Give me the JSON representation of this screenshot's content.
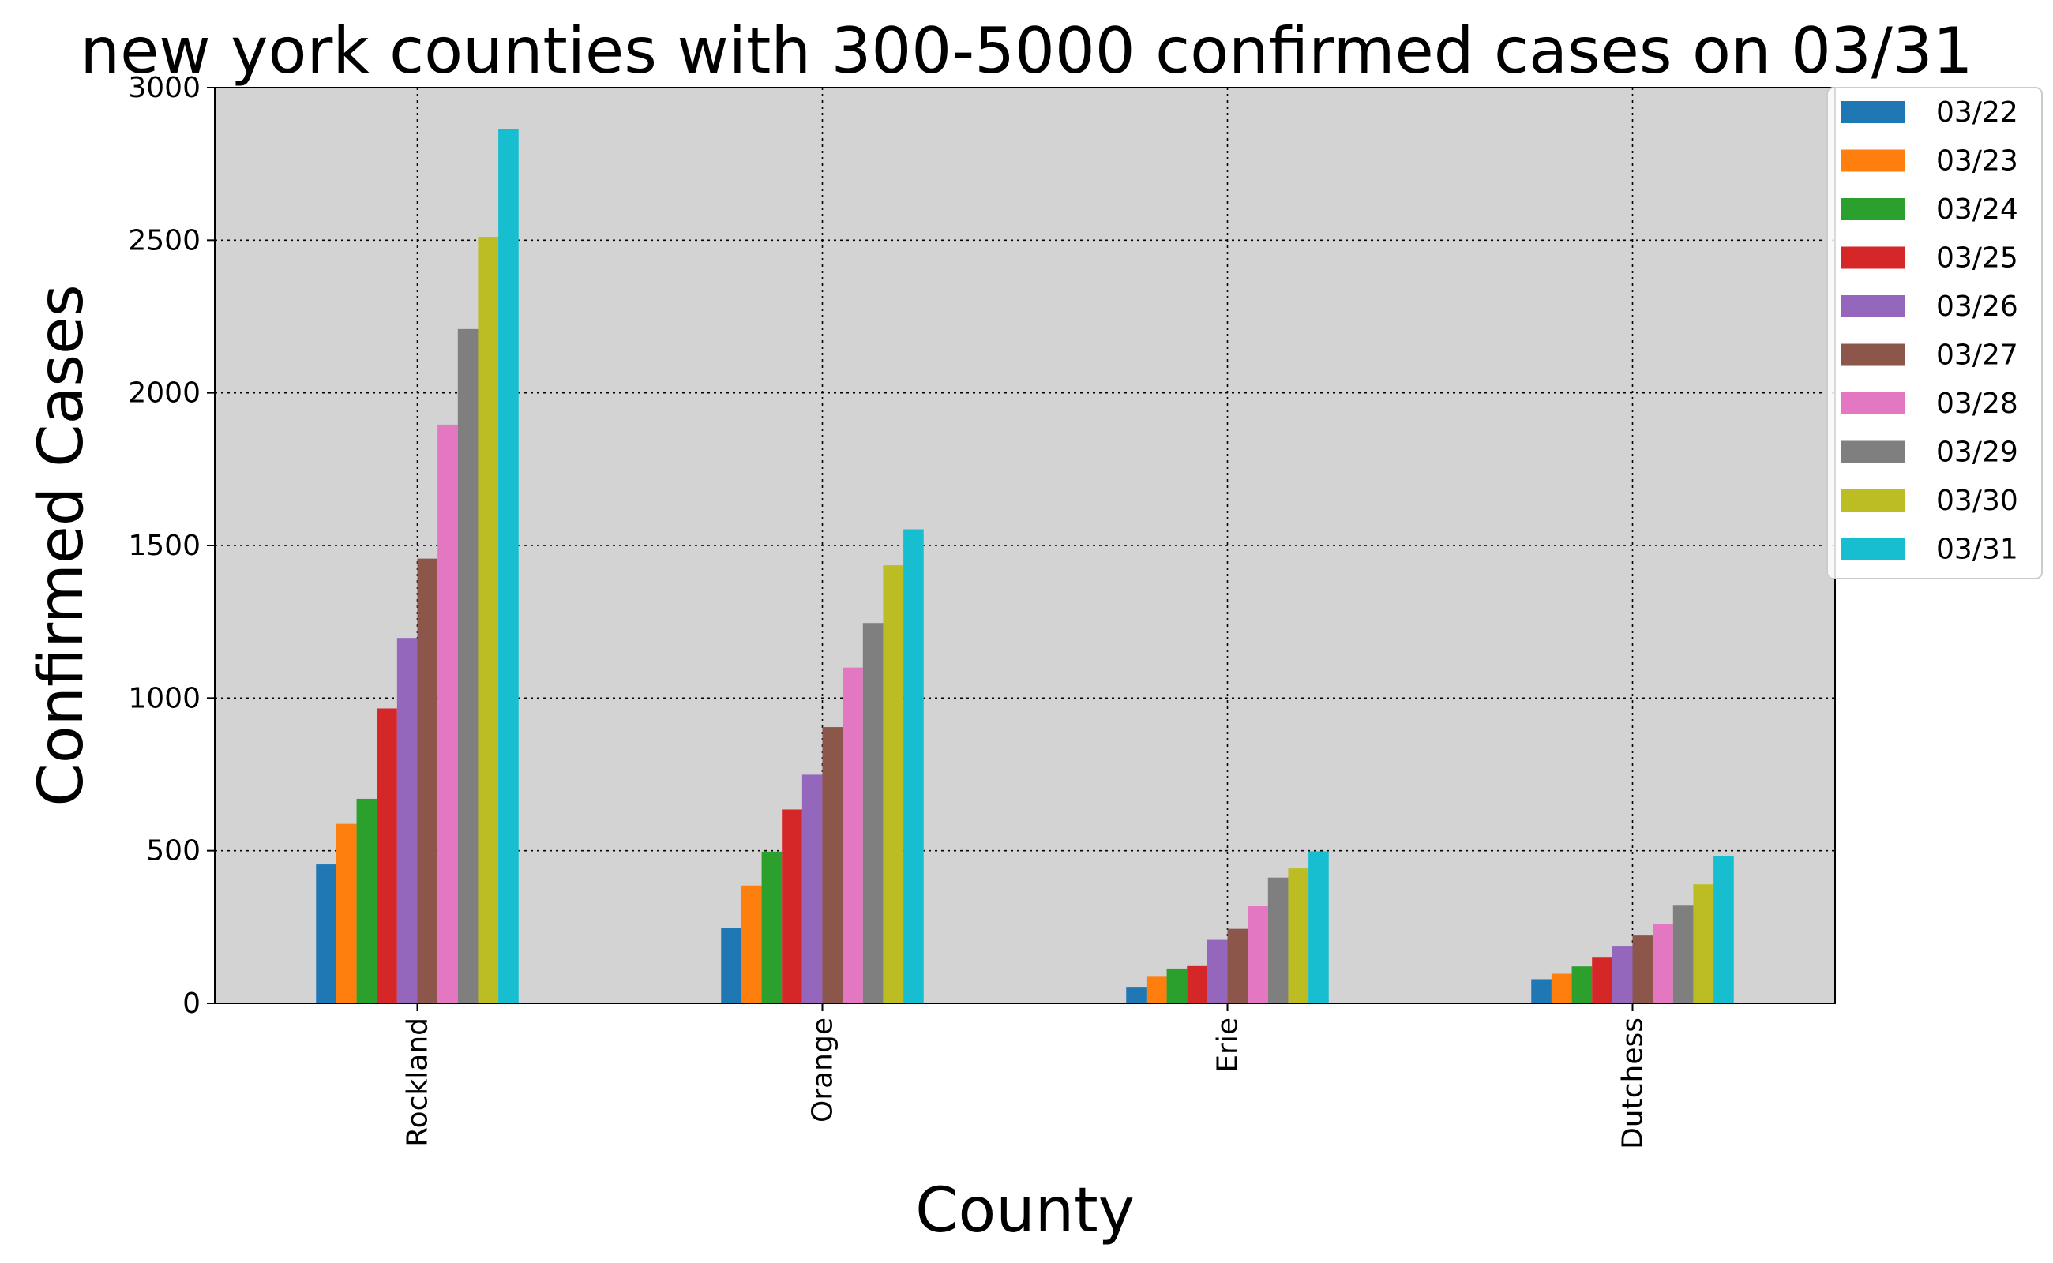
{
  "chart_data": {
    "type": "bar",
    "title": "new york counties with 300-5000 confirmed cases on 03/31",
    "xlabel": "County",
    "ylabel": "Confirmed Cases",
    "categories": [
      "Rockland",
      "Orange",
      "Erie",
      "Dutchess"
    ],
    "ylim": [
      0,
      3000
    ],
    "yticks": [
      0,
      500,
      1000,
      1500,
      2000,
      2500,
      3000
    ],
    "grid": true,
    "legend_position": "upper-right-outside",
    "plot_background": "#d3d3d3",
    "series": [
      {
        "name": "03/22",
        "color": "#1f77b4",
        "values": [
          455,
          248,
          54,
          79
        ]
      },
      {
        "name": "03/23",
        "color": "#ff7f0e",
        "values": [
          588,
          386,
          87,
          97
        ]
      },
      {
        "name": "03/24",
        "color": "#2ca02c",
        "values": [
          670,
          497,
          114,
          121
        ]
      },
      {
        "name": "03/25",
        "color": "#d62728",
        "values": [
          966,
          635,
          122,
          152
        ]
      },
      {
        "name": "03/26",
        "color": "#9467bd",
        "values": [
          1197,
          749,
          208,
          186
        ]
      },
      {
        "name": "03/27",
        "color": "#8c564b",
        "values": [
          1457,
          905,
          244,
          222
        ]
      },
      {
        "name": "03/28",
        "color": "#e377c2",
        "values": [
          1896,
          1100,
          318,
          259
        ]
      },
      {
        "name": "03/29",
        "color": "#7f7f7f",
        "values": [
          2209,
          1246,
          412,
          320
        ]
      },
      {
        "name": "03/30",
        "color": "#bcbd22",
        "values": [
          2511,
          1435,
          442,
          390
        ]
      },
      {
        "name": "03/31",
        "color": "#17becf",
        "values": [
          2863,
          1553,
          498,
          482
        ]
      }
    ]
  }
}
